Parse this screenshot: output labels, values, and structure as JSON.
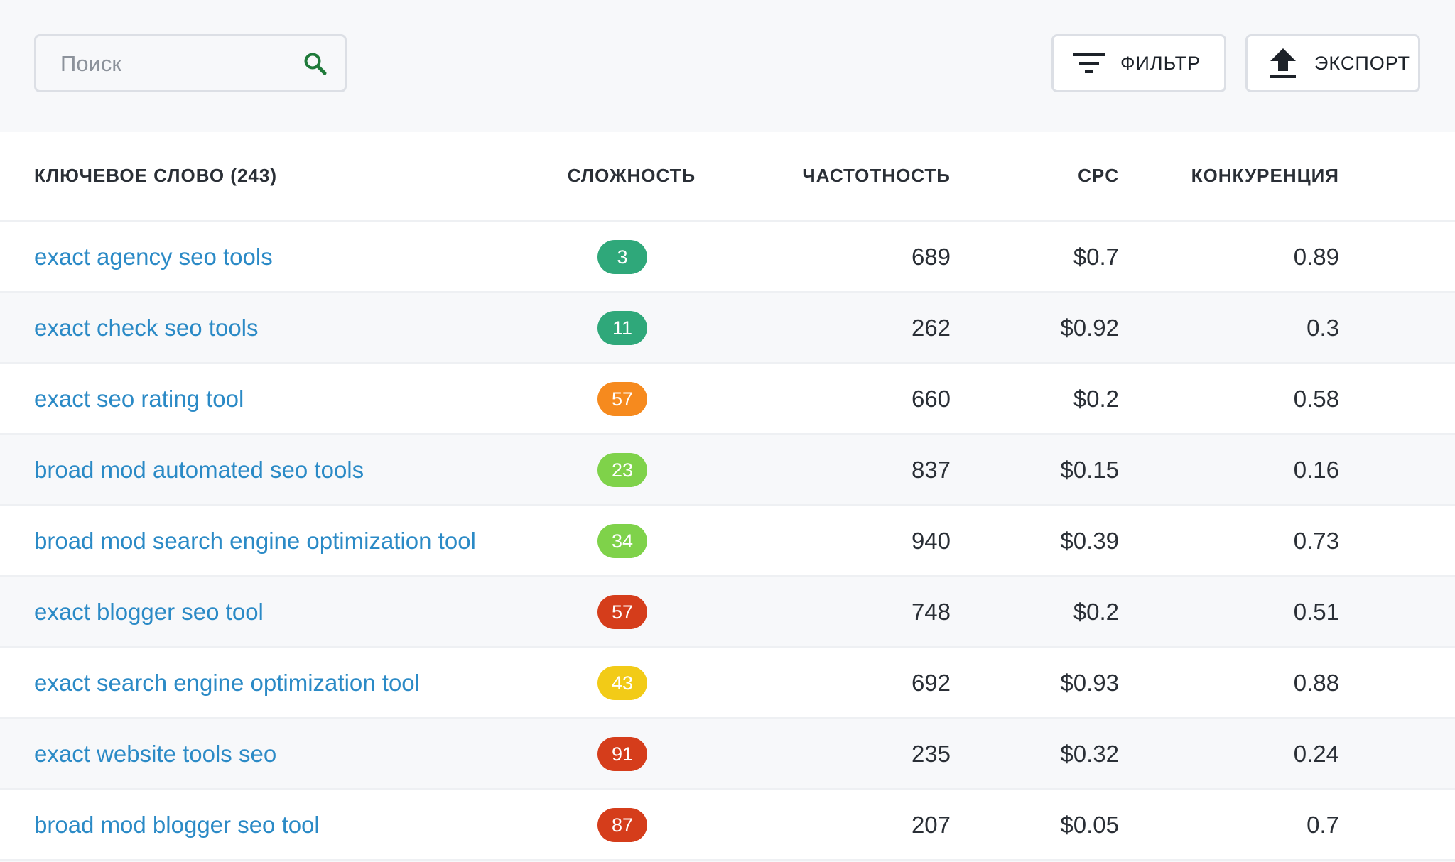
{
  "search": {
    "placeholder": "Поиск"
  },
  "toolbar": {
    "filter_label": "ФИЛЬТР",
    "export_label": "ЭКСПОРТ"
  },
  "table": {
    "headers": {
      "keyword": "КЛЮЧЕВОЕ СЛОВО (243)",
      "difficulty": "СЛОЖНОСТЬ",
      "volume": "ЧАСТОТНОСТЬ",
      "cpc": "CPC",
      "competition": "КОНКУРЕНЦИЯ"
    },
    "rows": [
      {
        "keyword": "exact agency seo tools",
        "difficulty": "3",
        "volume": "689",
        "cpc": "$0.7",
        "competition": "0.89",
        "badge_color": "#2fa87a"
      },
      {
        "keyword": "exact check seo tools",
        "difficulty": "11",
        "volume": "262",
        "cpc": "$0.92",
        "competition": "0.3",
        "badge_color": "#2fa87a"
      },
      {
        "keyword": "exact seo rating tool",
        "difficulty": "57",
        "volume": "660",
        "cpc": "$0.2",
        "competition": "0.58",
        "badge_color": "#f68a1e"
      },
      {
        "keyword": "broad mod automated seo tools",
        "difficulty": "23",
        "volume": "837",
        "cpc": "$0.15",
        "competition": "0.16",
        "badge_color": "#7fd24a"
      },
      {
        "keyword": "broad mod search engine optimization tool",
        "difficulty": "34",
        "volume": "940",
        "cpc": "$0.39",
        "competition": "0.73",
        "badge_color": "#7fd24a"
      },
      {
        "keyword": "exact blogger seo tool",
        "difficulty": "57",
        "volume": "748",
        "cpc": "$0.2",
        "competition": "0.51",
        "badge_color": "#d53d1b"
      },
      {
        "keyword": "exact search engine optimization tool",
        "difficulty": "43",
        "volume": "692",
        "cpc": "$0.93",
        "competition": "0.88",
        "badge_color": "#f2cb17"
      },
      {
        "keyword": "exact website tools seo",
        "difficulty": "91",
        "volume": "235",
        "cpc": "$0.32",
        "competition": "0.24",
        "badge_color": "#d53d1b"
      },
      {
        "keyword": "broad mod blogger seo tool",
        "difficulty": "87",
        "volume": "207",
        "cpc": "$0.05",
        "competition": "0.7",
        "badge_color": "#d53d1b"
      }
    ]
  },
  "colors": {
    "link": "#2b8ac6",
    "search_icon": "#1f7a3a",
    "background": "#f7f8fa"
  },
  "icons": {
    "search": "search-icon",
    "filter": "filter-icon",
    "export": "upload-icon"
  }
}
